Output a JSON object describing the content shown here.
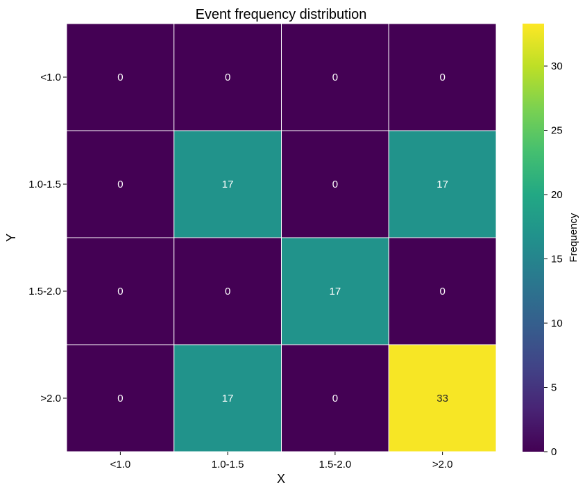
{
  "chart_data": {
    "type": "heatmap",
    "title": "Event frequency distribution",
    "xlabel": "X",
    "ylabel": "Y",
    "x_categories": [
      "<1.0",
      "1.0-1.5",
      "1.5-2.0",
      ">2.0"
    ],
    "y_categories": [
      "<1.0",
      "1.0-1.5",
      "1.5-2.0",
      ">2.0"
    ],
    "values": [
      [
        0,
        0,
        0,
        0
      ],
      [
        0,
        17,
        0,
        17
      ],
      [
        0,
        0,
        17,
        0
      ],
      [
        0,
        17,
        0,
        33
      ]
    ],
    "colorbar": {
      "label": "Frequency",
      "range": [
        0,
        33.3
      ],
      "ticks": [
        0,
        5,
        10,
        15,
        20,
        25,
        30
      ],
      "colormap": "viridis"
    },
    "annotations": true,
    "grid_line_color": "#ffffff"
  }
}
